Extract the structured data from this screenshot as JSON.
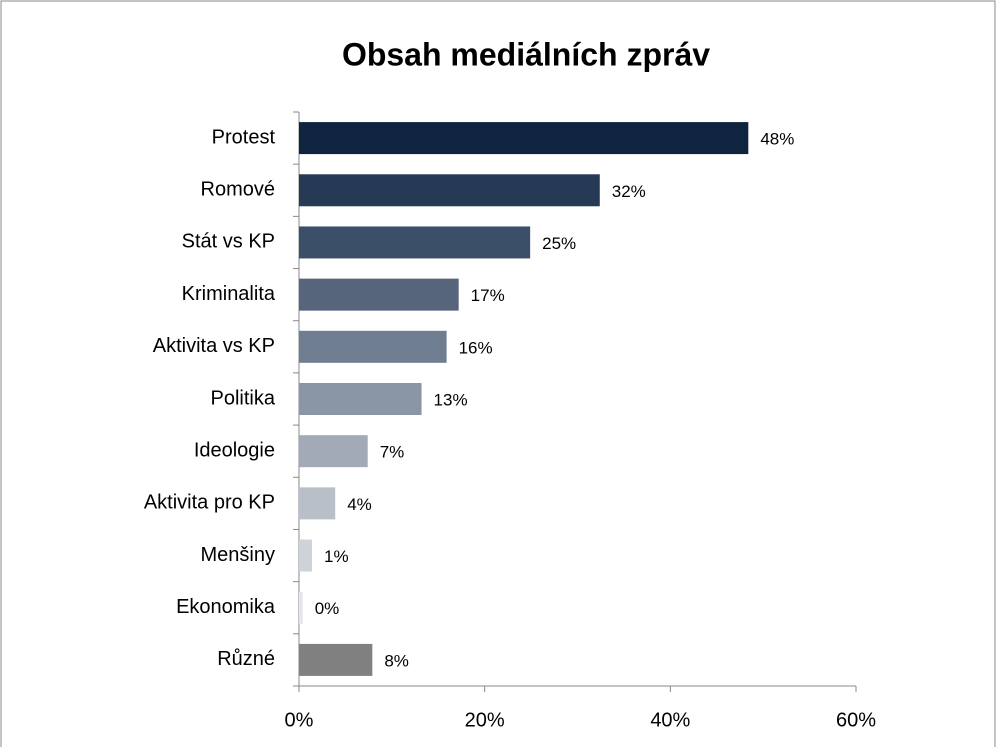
{
  "chart_data": {
    "type": "bar",
    "orientation": "horizontal",
    "title": "Obsah mediálních zpráv",
    "categories": [
      "Protest",
      "Romové",
      "Stát vs KP",
      "Kriminalita",
      "Aktivita vs KP",
      "Politika",
      "Ideologie",
      "Aktivita pro KP",
      "Menšiny",
      "Ekonomika",
      "Různé"
    ],
    "values": [
      48.4,
      32.4,
      24.9,
      17.2,
      15.9,
      13.2,
      7.4,
      3.9,
      1.4,
      0.4,
      7.9
    ],
    "value_labels": [
      "48%",
      "32%",
      "25%",
      "17%",
      "16%",
      "13%",
      "7%",
      "4%",
      "1%",
      "0%",
      "8%"
    ],
    "colors": [
      "#0f243e",
      "#263a56",
      "#3c4f69",
      "#56657b",
      "#6f7d90",
      "#8a96a5",
      "#a1aab6",
      "#b8bfc8",
      "#ced3d9",
      "#e3e6ea",
      "#808080"
    ],
    "xlim": [
      0,
      60
    ],
    "xticks": [
      {
        "value": 0,
        "label": "0%"
      },
      {
        "value": 20,
        "label": "20%"
      },
      {
        "value": 40,
        "label": "40%"
      },
      {
        "value": 60,
        "label": "60%"
      }
    ]
  }
}
